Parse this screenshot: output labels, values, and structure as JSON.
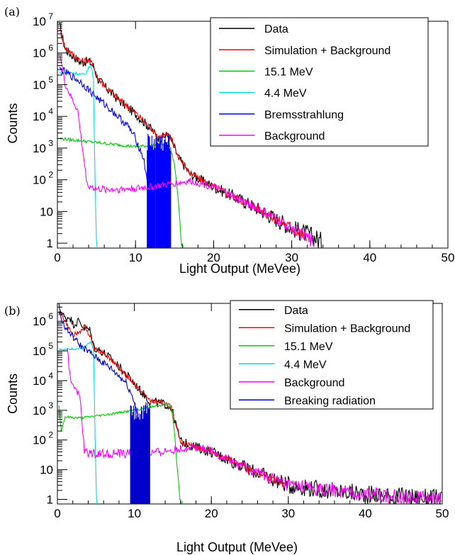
{
  "chart_data": [
    {
      "type": "line",
      "panel_label": "(a)",
      "xlabel": "Light Output (MeVee)",
      "ylabel": "Counts",
      "xlim": [
        0,
        50
      ],
      "ylim": [
        0.7,
        10000000
      ],
      "yscale": "log",
      "x_ticks": [
        0,
        10,
        20,
        30,
        40,
        50
      ],
      "y_ticks": [
        {
          "v": 1,
          "label": "1"
        },
        {
          "v": 10,
          "label": "10"
        },
        {
          "v": 100,
          "label": "10",
          "sup": "2"
        },
        {
          "v": 1000,
          "label": "10",
          "sup": "3"
        },
        {
          "v": 10000,
          "label": "10",
          "sup": "4"
        },
        {
          "v": 100000,
          "label": "10",
          "sup": "5"
        },
        {
          "v": 1000000,
          "label": "10",
          "sup": "6"
        },
        {
          "v": 10000000,
          "label": "10",
          "sup": "7"
        }
      ],
      "legend": [
        "Data",
        "Simulation + Background",
        "15.1 MeV",
        "4.4 MeV",
        "Bremsstrahlung",
        "Background"
      ],
      "series": [
        {
          "name": "Data",
          "color": "#000000",
          "noise": 0.15,
          "x": [
            0.3,
            1,
            2,
            3,
            4,
            4.6,
            5.2,
            6,
            8,
            10,
            12,
            13,
            14,
            14.5,
            15.5,
            17,
            20,
            25,
            30,
            33,
            34
          ],
          "y": [
            7000000,
            1300000,
            800000,
            500000,
            550000,
            400000,
            150000,
            90000,
            30000,
            12000,
            4000,
            2000,
            2500,
            2000,
            500,
            150,
            60,
            15,
            3,
            1.5,
            1
          ]
        },
        {
          "name": "Simulation + Background",
          "color": "#ff0000",
          "noise": 0.1,
          "x": [
            0.3,
            1,
            2,
            3,
            4,
            4.6,
            5.2,
            6,
            8,
            10,
            12,
            13,
            14,
            14.5,
            15.5,
            17,
            20,
            25,
            30,
            32
          ],
          "y": [
            6000000,
            1500000,
            900000,
            550000,
            600000,
            420000,
            160000,
            95000,
            32000,
            13000,
            4200,
            2200,
            2700,
            2100,
            520,
            160,
            60,
            15,
            3,
            1.5
          ]
        },
        {
          "name": "15.1 MeV",
          "color": "#00cc00",
          "noise": 0.05,
          "x": [
            0.3,
            2,
            5,
            10,
            13.5,
            14.3,
            15,
            15.5,
            15.9,
            16.2
          ],
          "y": [
            2000,
            1800,
            1500,
            1100,
            1300,
            1400,
            300,
            20,
            1,
            0.7
          ]
        },
        {
          "name": "4.4 MeV",
          "color": "#00dddd",
          "noise": 0.05,
          "x": [
            0.3,
            2,
            3.5,
            4.3,
            4.6,
            4.8,
            5.0,
            5.1
          ],
          "y": [
            230000,
            240000,
            200000,
            450000,
            150000,
            200,
            1,
            0.7
          ]
        },
        {
          "name": "Bremsstrahlung",
          "color": "#0000ff",
          "noise": 0.12,
          "x": [
            0.3,
            1,
            3,
            5,
            7,
            9,
            10,
            11,
            11.5
          ],
          "y": [
            300000,
            250000,
            120000,
            40000,
            15000,
            5000,
            2000,
            500,
            100
          ],
          "spikes": {
            "from": 11.5,
            "to": 14.5,
            "top": 1500
          }
        },
        {
          "name": "Background",
          "color": "#ff00ff",
          "noise": 0.1,
          "x": [
            0.3,
            1,
            2,
            2.6,
            3.2,
            3.8,
            5,
            8,
            11,
            14,
            17,
            20,
            25,
            30,
            32,
            33
          ],
          "y": [
            1000000,
            100000,
            30000,
            15000,
            1000,
            70,
            50,
            50,
            55,
            70,
            90,
            60,
            15,
            3,
            1.5,
            1
          ]
        }
      ]
    },
    {
      "type": "line",
      "panel_label": "(b)",
      "xlabel": "Light Output (MeVee)",
      "ylabel": "Counts",
      "xlim": [
        0,
        50
      ],
      "ylim": [
        0.7,
        4000000
      ],
      "yscale": "log",
      "x_ticks": [
        0,
        10,
        20,
        30,
        40,
        50
      ],
      "y_ticks": [
        {
          "v": 1,
          "label": "1"
        },
        {
          "v": 10,
          "label": "10"
        },
        {
          "v": 100,
          "label": "10",
          "sup": "2"
        },
        {
          "v": 1000,
          "label": "10",
          "sup": "3"
        },
        {
          "v": 10000,
          "label": "10",
          "sup": "4"
        },
        {
          "v": 100000,
          "label": "10",
          "sup": "5"
        },
        {
          "v": 1000000,
          "label": "10",
          "sup": "6"
        }
      ],
      "legend": [
        "Data",
        "Simulation + Background",
        "15.1 MeV",
        "4.4 MeV",
        "Background",
        "Breaking radiation"
      ],
      "series": [
        {
          "name": "Data",
          "color": "#000000",
          "noise": 0.15,
          "x": [
            0.2,
            1,
            1.6,
            2,
            2.8,
            3.5,
            4.2,
            4.8,
            6,
            8,
            10,
            12,
            13,
            14,
            14.8,
            16,
            17,
            20,
            25,
            30,
            35,
            40,
            45,
            50
          ],
          "y": [
            3000000,
            1200000,
            1500000,
            800000,
            1000000,
            600000,
            500000,
            130000,
            90000,
            30000,
            8000,
            2000,
            1800,
            1600,
            1200,
            90,
            70,
            40,
            10,
            3,
            2,
            1.5,
            1.2,
            1
          ]
        },
        {
          "name": "Simulation + Background",
          "color": "#ff0000",
          "noise": 0.08,
          "x": [
            0.2,
            1,
            1.6,
            2,
            2.8,
            3.5,
            4.2,
            4.8,
            6,
            8,
            10,
            12,
            13,
            14,
            14.8,
            16,
            17,
            20,
            25,
            30
          ],
          "y": [
            2500000,
            1000000,
            500000,
            350000,
            400000,
            650000,
            350000,
            120000,
            85000,
            28000,
            7500,
            2200,
            1900,
            1700,
            1300,
            90,
            70,
            40,
            10,
            3
          ]
        },
        {
          "name": "15.1 MeV",
          "color": "#00cc00",
          "noise": 0.04,
          "x": [
            0.2,
            0.5,
            1,
            3,
            6,
            10,
            14,
            14.8,
            15.2,
            15.5,
            15.9,
            16.3
          ],
          "y": [
            1500,
            200,
            600,
            550,
            700,
            1000,
            1600,
            1200,
            200,
            20,
            1,
            0.7
          ]
        },
        {
          "name": "4.4 MeV",
          "color": "#00dddd",
          "noise": 0.04,
          "x": [
            0.2,
            1,
            2,
            3.2,
            3.8,
            4.3,
            4.7,
            4.9,
            5.1
          ],
          "y": [
            120000,
            110000,
            120000,
            120000,
            150000,
            200000,
            100000,
            100,
            0.7
          ]
        },
        {
          "name": "Background",
          "color": "#ff00ff",
          "noise": 0.12,
          "x": [
            1.3,
            1.7,
            2.5,
            3,
            3.5,
            5,
            8,
            12,
            16,
            18,
            20,
            25,
            30,
            35,
            40,
            45,
            50
          ],
          "y": [
            100000,
            10000,
            5000,
            2000,
            40,
            35,
            35,
            35,
            50,
            60,
            40,
            10,
            3,
            2,
            1.5,
            1.2,
            1
          ]
        },
        {
          "name": "Breaking radiation",
          "color": "#0000cc",
          "noise": 0.12,
          "x": [
            0.2,
            1,
            3,
            5,
            7,
            9,
            10,
            10.5,
            11
          ],
          "y": [
            2000000,
            600000,
            150000,
            60000,
            25000,
            8000,
            2000,
            500,
            100
          ],
          "spikes": {
            "from": 9.5,
            "to": 12,
            "top": 900
          }
        }
      ]
    }
  ]
}
